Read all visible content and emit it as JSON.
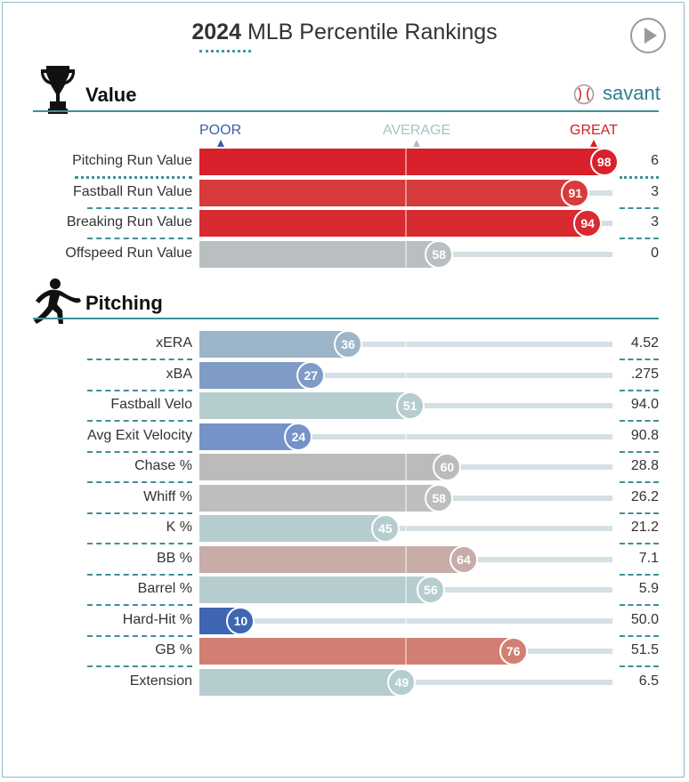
{
  "header": {
    "year": "2024",
    "title_rest": "MLB Percentile Rankings"
  },
  "brand": {
    "label": "savant"
  },
  "scale": {
    "poor": {
      "label": "POOR",
      "color": "#3a5fa8"
    },
    "average": {
      "label": "AVERAGE",
      "color": "#a9c1c6"
    },
    "great": {
      "label": "GREAT",
      "color": "#d22027"
    }
  },
  "chart_data": {
    "type": "bar",
    "title": "2024 MLB Percentile Rankings",
    "xlim": [
      0,
      100
    ],
    "groups": [
      {
        "name": "Value",
        "metrics": [
          {
            "label": "Pitching Run Value",
            "percentile": 98,
            "value": "6",
            "color": "#d8212a"
          },
          {
            "label": "Fastball Run Value",
            "percentile": 91,
            "value": "3",
            "color": "#d73b3b"
          },
          {
            "label": "Breaking Run Value",
            "percentile": 94,
            "value": "3",
            "color": "#d72b31"
          },
          {
            "label": "Offspeed Run Value",
            "percentile": 58,
            "value": "0",
            "color": "#b9bfc1"
          }
        ]
      },
      {
        "name": "Pitching",
        "metrics": [
          {
            "label": "xERA",
            "percentile": 36,
            "value": "4.52",
            "color": "#9db5c8"
          },
          {
            "label": "xBA",
            "percentile": 27,
            "value": ".275",
            "color": "#7f9cc6"
          },
          {
            "label": "Fastball Velo",
            "percentile": 51,
            "value": "94.0",
            "color": "#b6cdd0"
          },
          {
            "label": "Avg Exit Velocity",
            "percentile": 24,
            "value": "90.8",
            "color": "#7593c8"
          },
          {
            "label": "Chase %",
            "percentile": 60,
            "value": "28.8",
            "color": "#bcbbbb"
          },
          {
            "label": "Whiff %",
            "percentile": 58,
            "value": "26.2",
            "color": "#bdbebf"
          },
          {
            "label": "K %",
            "percentile": 45,
            "value": "21.2",
            "color": "#b6cdd0"
          },
          {
            "label": "BB %",
            "percentile": 64,
            "value": "7.1",
            "color": "#c7aca7"
          },
          {
            "label": "Barrel %",
            "percentile": 56,
            "value": "5.9",
            "color": "#b6cdd0"
          },
          {
            "label": "Hard-Hit %",
            "percentile": 10,
            "value": "50.0",
            "color": "#3e66b3"
          },
          {
            "label": "GB %",
            "percentile": 76,
            "value": "51.5",
            "color": "#d27f73"
          },
          {
            "label": "Extension",
            "percentile": 49,
            "value": "6.5",
            "color": "#b6cdd0"
          }
        ]
      }
    ]
  }
}
